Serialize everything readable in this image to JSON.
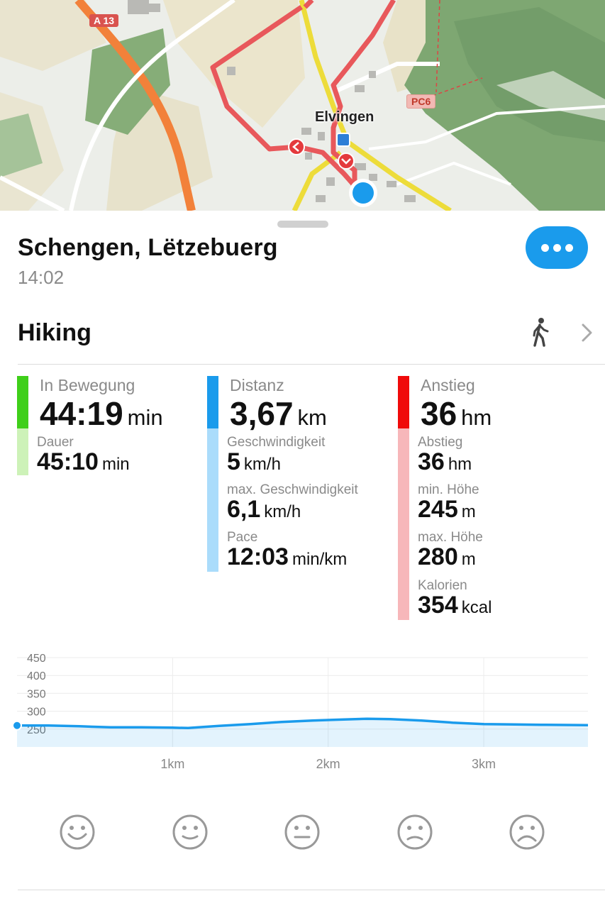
{
  "map": {
    "town_label": "Elvingen",
    "road_a13": "A 13",
    "road_pc6": "PC6"
  },
  "header": {
    "place": "Schengen, Lëtzebuerg",
    "time": "14:02",
    "more_icon": "more-horizontal-icon"
  },
  "activity": {
    "name": "Hiking",
    "icon": "hiker-icon"
  },
  "stats": {
    "moving": {
      "label": "In Bewegung",
      "value": "44:19",
      "unit": "min",
      "color": "#3fcf1a",
      "color_light": "#cdf2b8",
      "duration_label": "Dauer",
      "duration_value": "45:10",
      "duration_unit": "min"
    },
    "distance": {
      "label": "Distanz",
      "value": "3,67",
      "unit": "km",
      "color": "#1a9bec",
      "color_light": "#aadcfb",
      "speed_label": "Geschwindigkeit",
      "speed_value": "5",
      "speed_unit": "km/h",
      "max_speed_label": "max. Geschwindigkeit",
      "max_speed_value": "6,1",
      "max_speed_unit": "km/h",
      "pace_label": "Pace",
      "pace_value": "12:03",
      "pace_unit": "min/km"
    },
    "ascent": {
      "label": "Anstieg",
      "value": "36",
      "unit": "hm",
      "color": "#f00a0a",
      "color_light": "#f7b7ba",
      "descent_label": "Abstieg",
      "descent_value": "36",
      "descent_unit": "hm",
      "min_alt_label": "min. Höhe",
      "min_alt_value": "245",
      "min_alt_unit": "m",
      "max_alt_label": "max. Höhe",
      "max_alt_value": "280",
      "max_alt_unit": "m",
      "calories_label": "Kalorien",
      "calories_value": "354",
      "calories_unit": "kcal"
    }
  },
  "chart_data": {
    "type": "area",
    "xlabel": "",
    "ylabel": "",
    "x_ticks": [
      "1km",
      "2km",
      "3km"
    ],
    "y_ticks": [
      "450",
      "400",
      "350",
      "300",
      "250"
    ],
    "ylim": [
      200,
      450
    ],
    "xlim": [
      0,
      3.67
    ],
    "color": "#1a9bec",
    "x": [
      0,
      0.2,
      0.4,
      0.6,
      0.8,
      1.0,
      1.1,
      1.3,
      1.5,
      1.7,
      1.9,
      2.1,
      2.25,
      2.4,
      2.6,
      2.8,
      3.0,
      3.2,
      3.4,
      3.67
    ],
    "y": [
      260,
      260,
      258,
      255,
      255,
      254,
      253,
      259,
      264,
      270,
      274,
      277,
      279,
      278,
      274,
      268,
      264,
      263,
      262,
      261
    ]
  },
  "moods": [
    {
      "icon": "very-happy-face-icon"
    },
    {
      "icon": "happy-face-icon"
    },
    {
      "icon": "neutral-face-icon"
    },
    {
      "icon": "sad-face-icon"
    },
    {
      "icon": "very-sad-face-icon"
    }
  ]
}
